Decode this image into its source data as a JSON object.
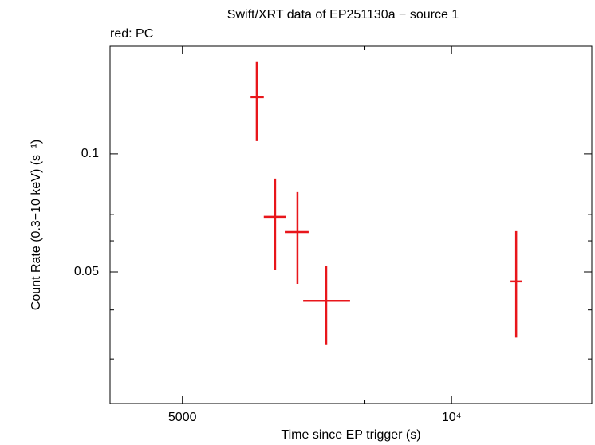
{
  "chart_data": {
    "type": "scatter",
    "title": "Swift/XRT data of EP251130a − source 1",
    "subtitle": "red: PC",
    "x_label": "Time since EP trigger (s)",
    "y_label": "Count Rate (0.3−10 keV) (s⁻¹)",
    "xscale": "log",
    "yscale": "log",
    "xlim": [
      4150,
      14350
    ],
    "ylim": [
      0.0231,
      0.188
    ],
    "xticks": [
      5000,
      {
        "value": 10000,
        "label": "10⁴"
      }
    ],
    "xminor": [
      8000
    ],
    "yticks": [
      0.05,
      0.1
    ],
    "yminor": [
      0.03,
      0.04,
      0.06,
      0.07
    ],
    "series": [
      {
        "name": "PC",
        "color": "#e8161b",
        "x": [
          6055,
          6348,
          6724,
          7241,
          11810
        ],
        "xerr_minus": [
          95,
          182,
          216,
          417,
          170
        ],
        "xerr_plus": [
          111,
          186,
          196,
          459,
          170
        ],
        "values": [
          0.1394,
          0.0691,
          0.0632,
          0.0422,
          0.0473
        ],
        "yerr_minus": [
          0.0316,
          0.0184,
          0.0166,
          0.0095,
          0.0133
        ],
        "yerr_plus": [
          0.032,
          0.0174,
          0.0167,
          0.0095,
          0.0162
        ]
      }
    ]
  }
}
